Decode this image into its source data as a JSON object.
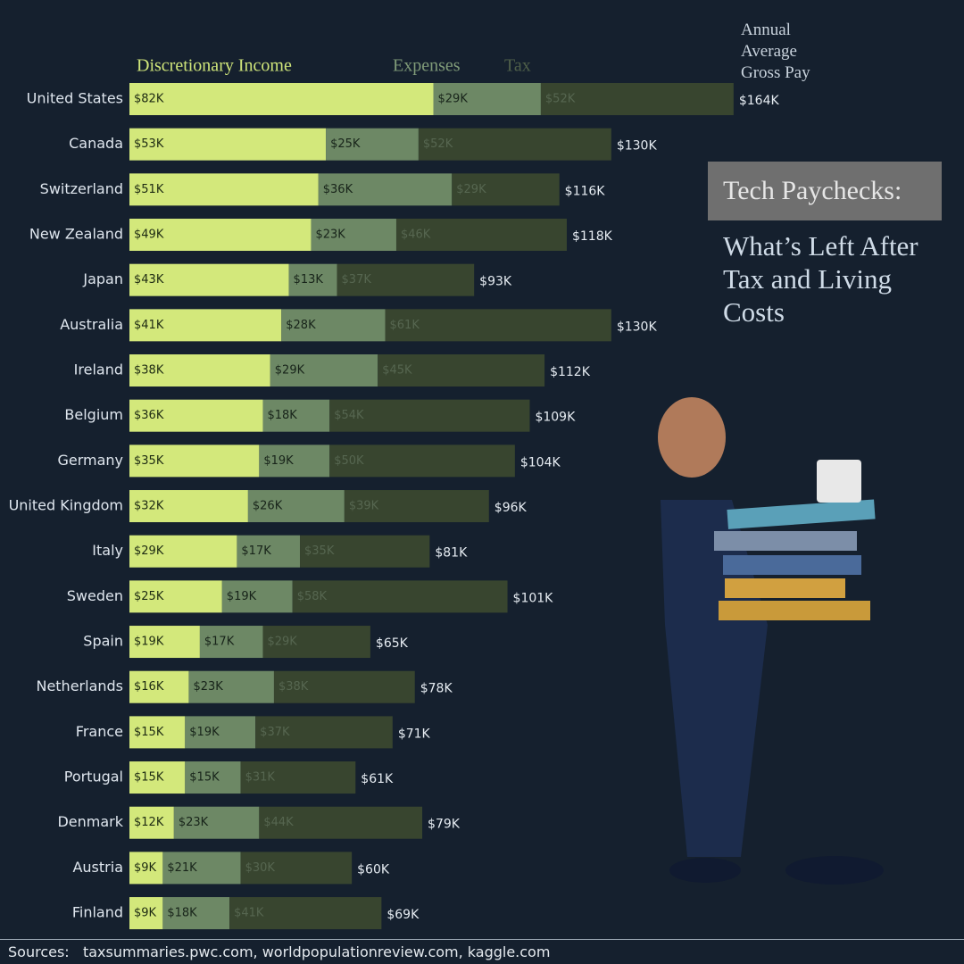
{
  "chart_data": {
    "type": "stacked-bar-horizontal",
    "title": "Tech Paychecks:",
    "subtitle": "What’s Left After Tax and Living Costs",
    "categories": [
      "United States",
      "Canada",
      "Switzerland",
      "New Zealand",
      "Japan",
      "Australia",
      "Ireland",
      "Belgium",
      "Germany",
      "United Kingdom",
      "Italy",
      "Sweden",
      "Spain",
      "Netherlands",
      "France",
      "Portugal",
      "Denmark",
      "Austria",
      "Finland"
    ],
    "series": [
      {
        "name": "Discretionary Income",
        "color": "#d3e87b",
        "label_color": "#1d2a12",
        "values": [
          82,
          53,
          51,
          49,
          43,
          41,
          38,
          36,
          35,
          32,
          29,
          25,
          19,
          16,
          15,
          15,
          12,
          9,
          9
        ],
        "value_labels": [
          "$82K",
          "$53K",
          "$51K",
          "$49K",
          "$43K",
          "$41K",
          "$38K",
          "$36K",
          "$35K",
          "$32K",
          "$29K",
          "$25K",
          "$19K",
          "$16K",
          "$15K",
          "$15K",
          "$12K",
          "$9K",
          "$9K"
        ]
      },
      {
        "name": "Expenses",
        "color": "#6d8865",
        "label_color": "#18241a",
        "values": [
          29,
          25,
          36,
          23,
          13,
          28,
          29,
          18,
          19,
          26,
          17,
          19,
          17,
          23,
          19,
          15,
          23,
          21,
          18
        ],
        "value_labels": [
          "$29K",
          "$25K",
          "$36K",
          "$23K",
          "$13K",
          "$28K",
          "$29K",
          "$18K",
          "$19K",
          "$26K",
          "$17K",
          "$19K",
          "$17K",
          "$23K",
          "$19K",
          "$15K",
          "$23K",
          "$21K",
          "$18K"
        ]
      },
      {
        "name": "Tax",
        "color": "#38452f",
        "label_color": "#566650",
        "values": [
          52,
          52,
          29,
          46,
          37,
          61,
          45,
          54,
          50,
          39,
          35,
          58,
          29,
          38,
          37,
          31,
          44,
          30,
          41
        ],
        "value_labels": [
          "$52K",
          "$52K",
          "$29K",
          "$46K",
          "$37K",
          "$61K",
          "$45K",
          "$54K",
          "$50K",
          "$39K",
          "$35K",
          "$58K",
          "$29K",
          "$38K",
          "$37K",
          "$31K",
          "$44K",
          "$30K",
          "$41K"
        ]
      }
    ],
    "totals": {
      "name": "Annual Average Gross Pay",
      "values": [
        164,
        130,
        116,
        118,
        93,
        130,
        112,
        109,
        104,
        96,
        81,
        101,
        65,
        78,
        71,
        61,
        79,
        60,
        69
      ],
      "value_labels": [
        "$164K",
        "$130K",
        "$116K",
        "$118K",
        "$93K",
        "$130K",
        "$112K",
        "$109K",
        "$104K",
        "$96K",
        "$81K",
        "$101K",
        "$65K",
        "$78K",
        "$71K",
        "$61K",
        "$79K",
        "$60K",
        "$69K"
      ]
    },
    "legend_colors": [
      "#cfe57a",
      "#7f9a78",
      "#4f5f49"
    ],
    "sources_label": "Sources:",
    "sources": "taxsummaries.pwc.com, worldpopulationreview.com, kaggle.com"
  }
}
